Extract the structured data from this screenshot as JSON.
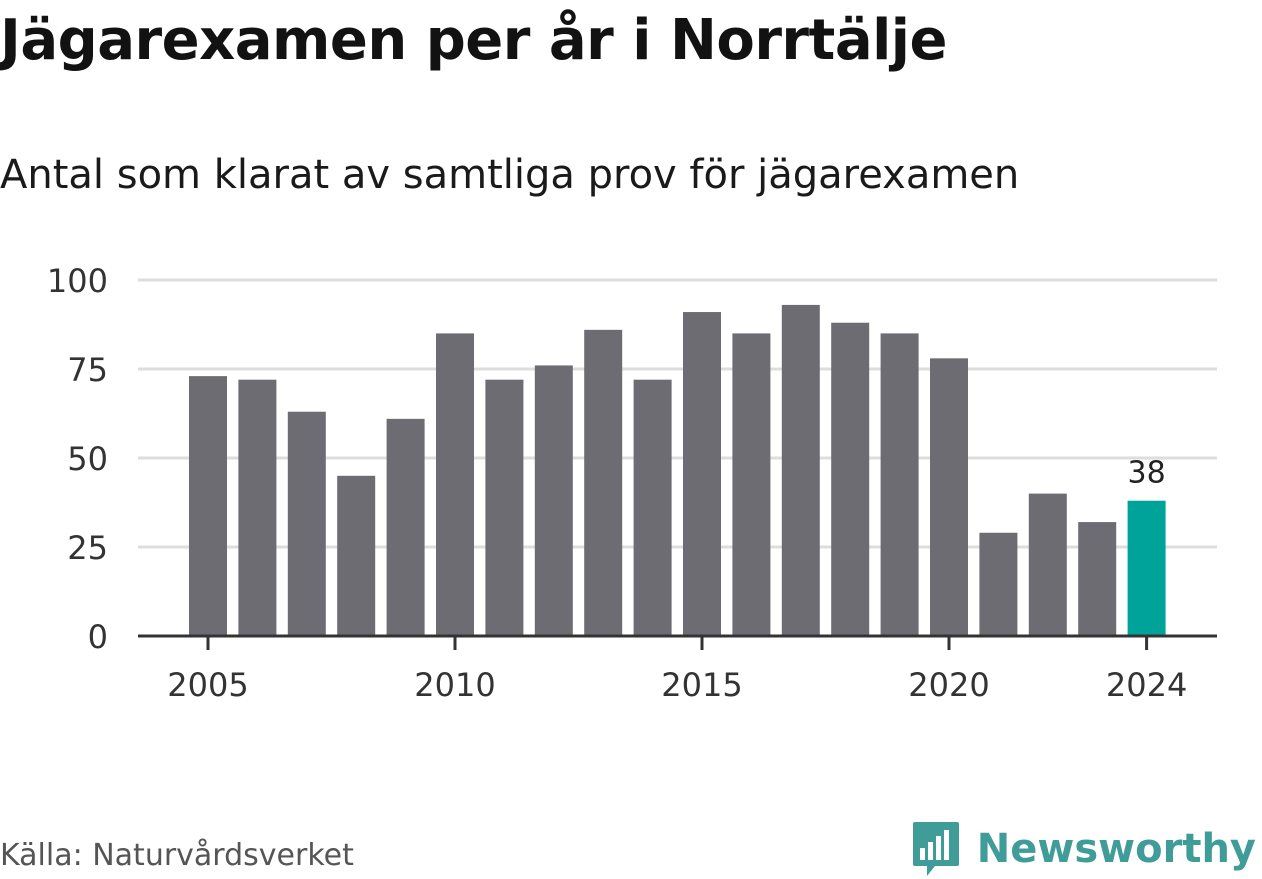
{
  "header": {
    "title": "Jägarexamen per år i Norrtälje",
    "subtitle": "Antal som klarat av samtliga prov för jägarexamen"
  },
  "chart_data": {
    "type": "bar",
    "categories": [
      2005,
      2006,
      2007,
      2008,
      2009,
      2010,
      2011,
      2012,
      2013,
      2014,
      2015,
      2016,
      2017,
      2018,
      2019,
      2020,
      2021,
      2022,
      2023,
      2024
    ],
    "values": [
      73,
      72,
      63,
      45,
      61,
      85,
      72,
      76,
      86,
      72,
      91,
      85,
      93,
      88,
      85,
      78,
      29,
      40,
      32,
      38
    ],
    "ylim": [
      0,
      100
    ],
    "yticks": [
      0,
      25,
      50,
      75,
      100
    ],
    "xticks": [
      2005,
      2010,
      2015,
      2020,
      2024
    ],
    "grid": true,
    "bar_color": "#6d6c72",
    "highlight": {
      "category": 2024,
      "color": "#00a39a",
      "label": "38"
    },
    "gridline_color": "#dddddd",
    "axis_color": "#333333"
  },
  "footer": {
    "source": "Källa: Naturvårdsverket",
    "brand": "Newsworthy",
    "brand_icon": "bar-chart-speech-bubble-icon",
    "brand_color": "#3f9c98"
  }
}
